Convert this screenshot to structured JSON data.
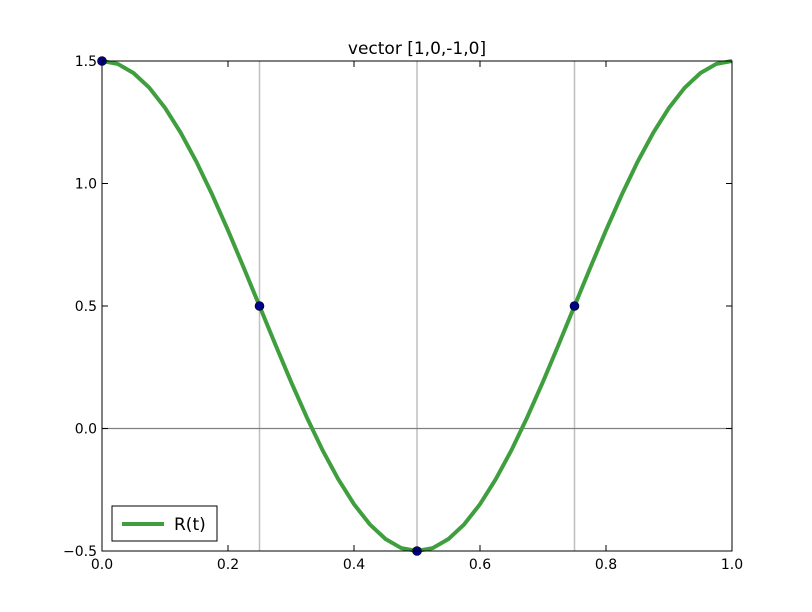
{
  "chart_data": {
    "type": "line",
    "title": "vector [1,0,-1,0]",
    "xlabel": "",
    "ylabel": "",
    "xlim": [
      0.0,
      1.0
    ],
    "ylim": [
      -0.5,
      1.5
    ],
    "x_ticks": [
      0.0,
      0.2,
      0.4,
      0.6,
      0.8,
      1.0
    ],
    "x_tick_labels": [
      "0.0",
      "0.2",
      "0.4",
      "0.6",
      "0.8",
      "1.0"
    ],
    "y_ticks": [
      -0.5,
      0.0,
      0.5,
      1.0,
      1.5
    ],
    "y_tick_labels": [
      "−0.5",
      "0.0",
      "0.5",
      "1.0",
      "1.5"
    ],
    "vertical_reference_lines": [
      0.25,
      0.5,
      0.75
    ],
    "horizontal_reference_lines": [
      0.0
    ],
    "grid": false,
    "legend_position": "lower-left",
    "series": [
      {
        "name": "R(t)",
        "color": "#3f9f3f",
        "x": [
          0.0,
          0.025,
          0.05,
          0.075,
          0.1,
          0.125,
          0.15,
          0.175,
          0.2,
          0.225,
          0.25,
          0.275,
          0.3,
          0.325,
          0.35,
          0.375,
          0.4,
          0.425,
          0.45,
          0.475,
          0.5,
          0.525,
          0.55,
          0.575,
          0.6,
          0.625,
          0.65,
          0.675,
          0.7,
          0.725,
          0.75,
          0.775,
          0.8,
          0.825,
          0.85,
          0.875,
          0.9,
          0.925,
          0.95,
          0.975,
          1.0
        ],
        "y": [
          1.5,
          1.488,
          1.451,
          1.391,
          1.309,
          1.207,
          1.088,
          0.954,
          0.809,
          0.656,
          0.5,
          0.344,
          0.191,
          0.046,
          -0.088,
          -0.207,
          -0.309,
          -0.391,
          -0.451,
          -0.488,
          -0.5,
          -0.488,
          -0.451,
          -0.391,
          -0.309,
          -0.207,
          -0.088,
          0.046,
          0.191,
          0.344,
          0.5,
          0.656,
          0.809,
          0.954,
          1.088,
          1.207,
          1.309,
          1.391,
          1.451,
          1.488,
          1.5
        ]
      },
      {
        "name": "",
        "type": "scatter",
        "color": "#00008b",
        "x": [
          0.0,
          0.25,
          0.5,
          0.75
        ],
        "y": [
          1.5,
          0.5,
          -0.5,
          0.5
        ]
      }
    ]
  }
}
